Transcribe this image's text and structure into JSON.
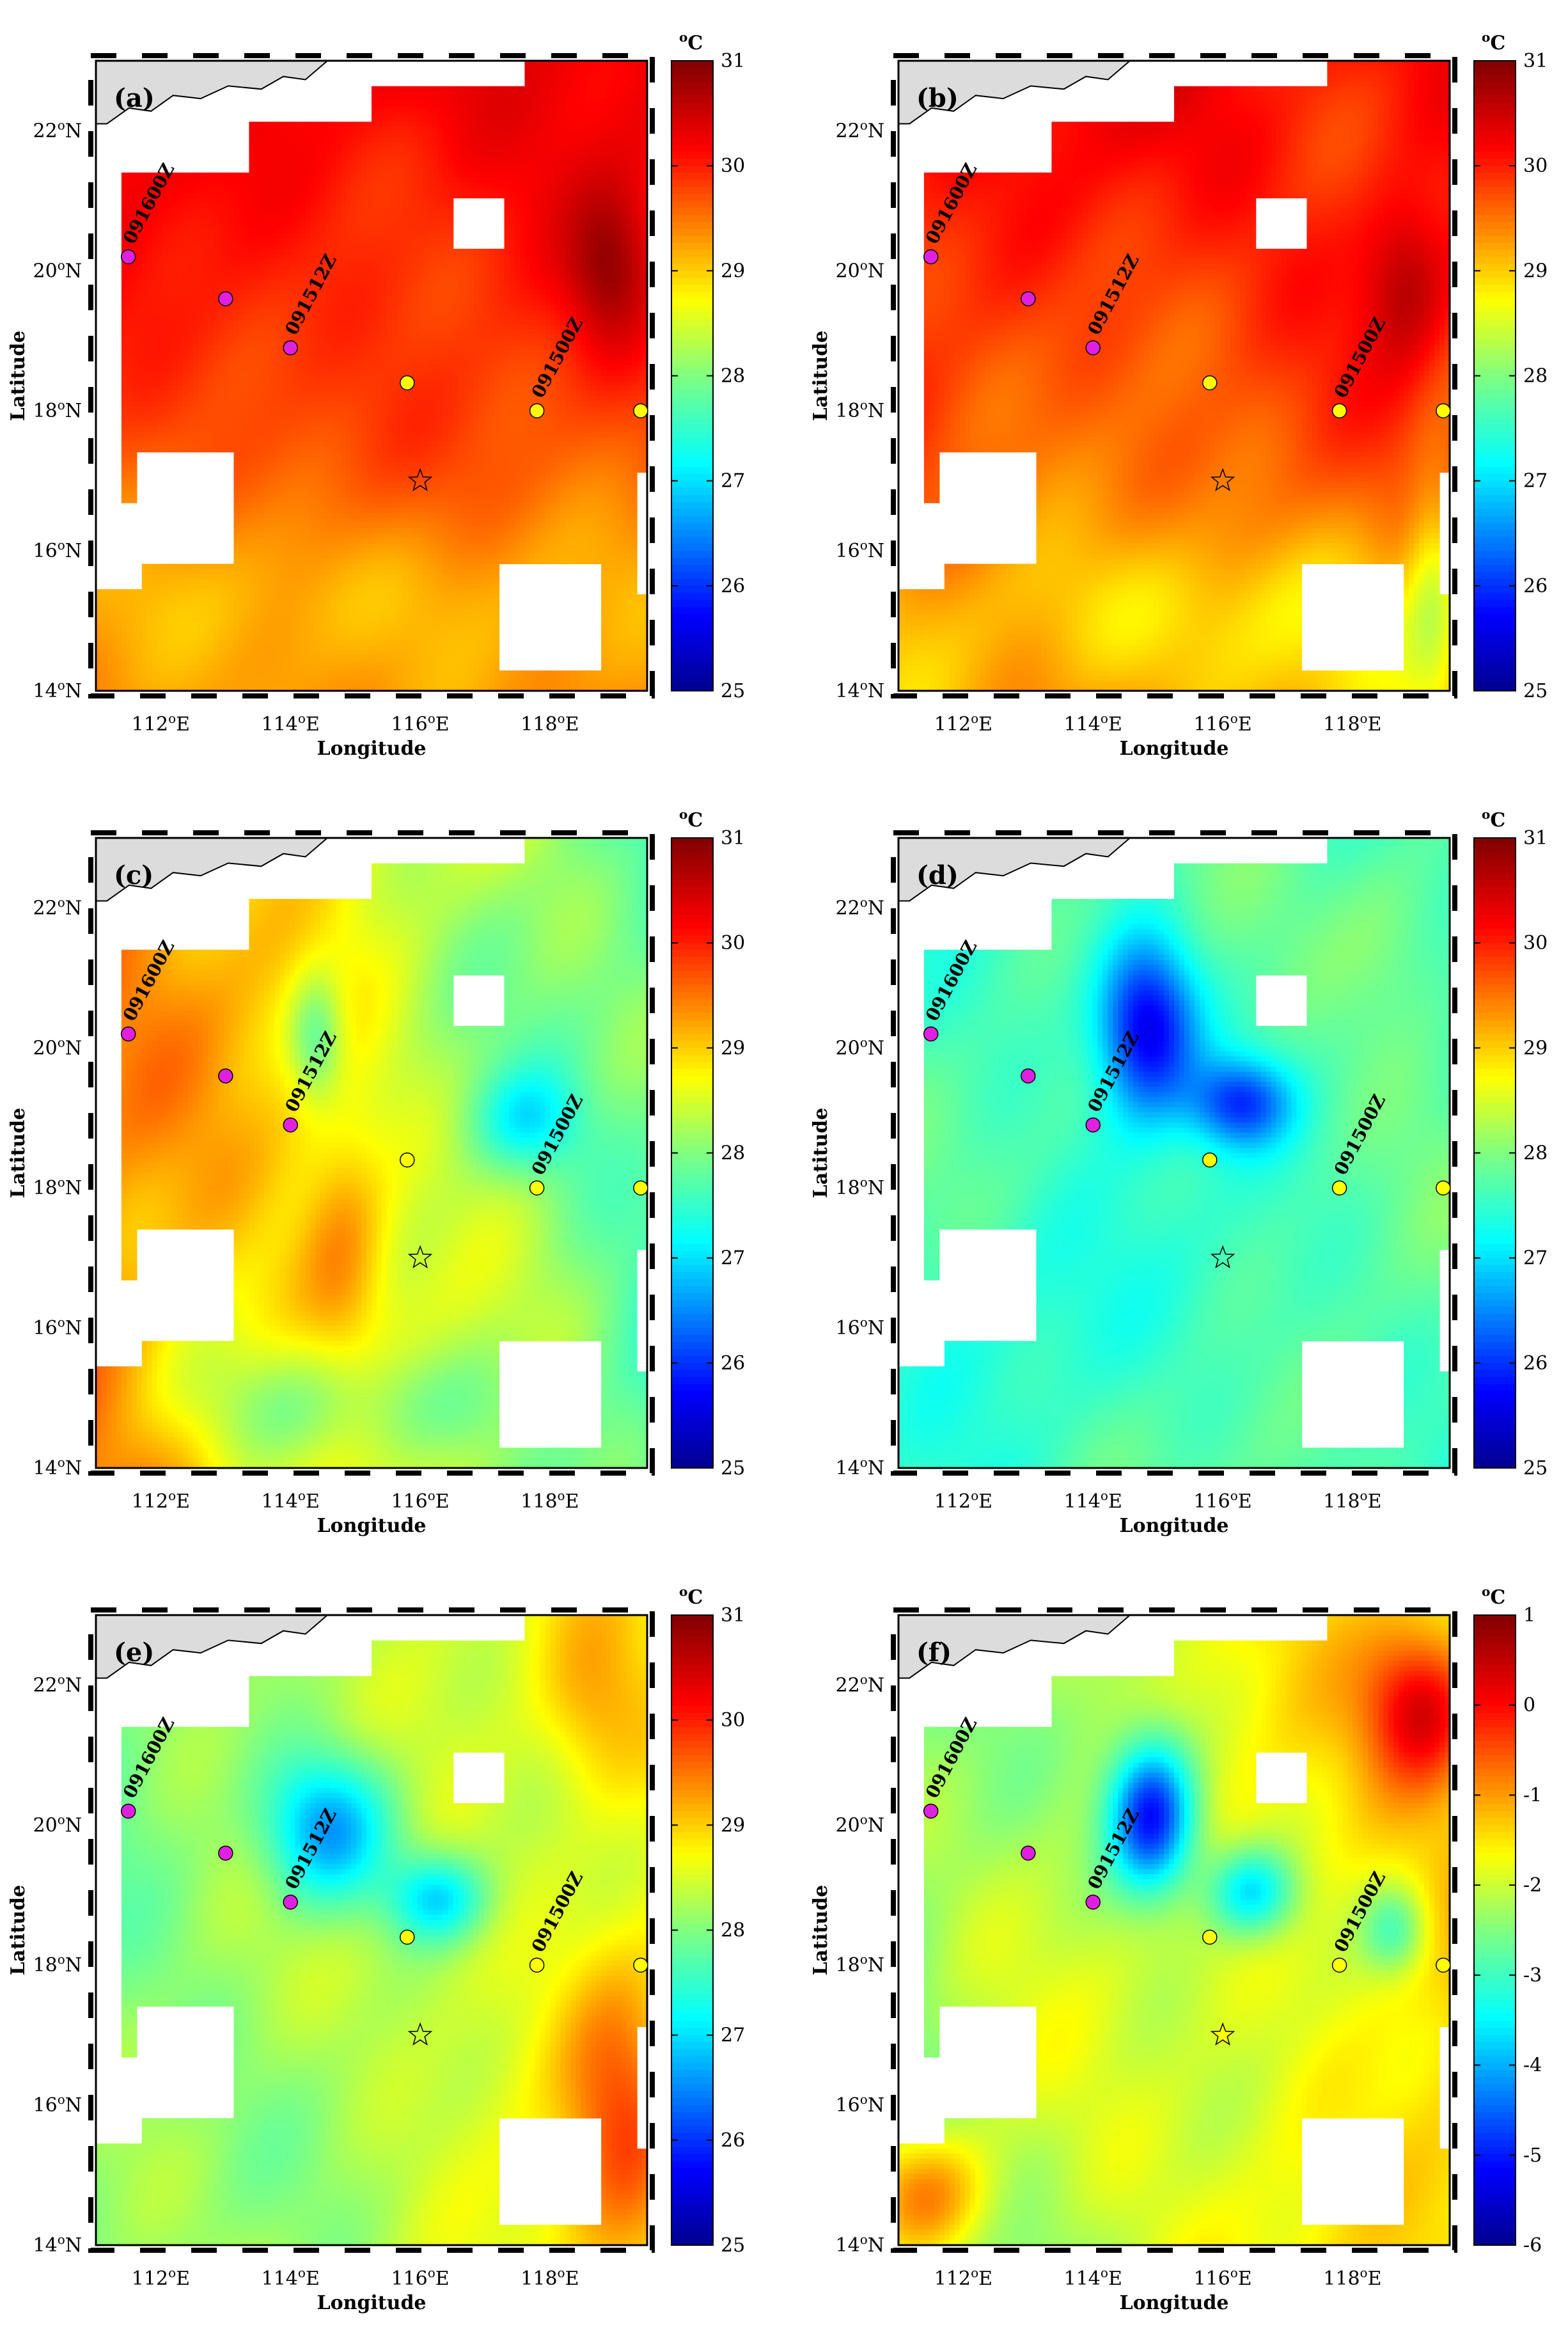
{
  "figure": {
    "colorbar_unit": "oC",
    "colors": {
      "land": "#dcdcdc",
      "coast": "#000000",
      "track_magenta": "#e020e0",
      "track_yellow": "#ffff00"
    }
  },
  "panels": [
    {
      "label": "(a)",
      "cmin": 25,
      "cmax": 31,
      "ticks": [
        31,
        30,
        29,
        28,
        27,
        26,
        25
      ],
      "field": "warm",
      "mask": "coarse",
      "star_fill": "none"
    },
    {
      "label": "(b)",
      "cmin": 25,
      "cmax": 31,
      "ticks": [
        31,
        30,
        29,
        28,
        27,
        26,
        25
      ],
      "field": "warm2",
      "mask": "coarse",
      "star_fill": "none"
    },
    {
      "label": "(c)",
      "cmin": 25,
      "cmax": 31,
      "ticks": [
        31,
        30,
        29,
        28,
        27,
        26,
        25
      ],
      "field": "mixed",
      "mask": "fine",
      "star_fill": "none"
    },
    {
      "label": "(d)",
      "cmin": 25,
      "cmax": 31,
      "ticks": [
        31,
        30,
        29,
        28,
        27,
        26,
        25
      ],
      "field": "cool",
      "mask": "fine",
      "star_fill": "none"
    },
    {
      "label": "(e)",
      "cmin": 25,
      "cmax": 31,
      "ticks": [
        31,
        30,
        29,
        28,
        27,
        26,
        25
      ],
      "field": "cool2",
      "mask": "fine",
      "star_fill": "none"
    },
    {
      "label": "(f)",
      "cmin": -6,
      "cmax": 1,
      "ticks": [
        1,
        0,
        -1,
        -2,
        -3,
        -4,
        -5,
        -6
      ],
      "field": "diff",
      "mask": "fine",
      "star_fill": "#ffff00"
    }
  ],
  "map": {
    "lon_range": [
      111,
      119.5
    ],
    "lat_range": [
      14,
      23
    ],
    "lon_ticks": [
      {
        "value": 112,
        "label": "112"
      },
      {
        "value": 114,
        "label": "114"
      },
      {
        "value": 116,
        "label": "116"
      },
      {
        "value": 118,
        "label": "118"
      }
    ],
    "lat_ticks": [
      {
        "value": 14,
        "label": "14"
      },
      {
        "value": 16,
        "label": "16"
      },
      {
        "value": 18,
        "label": "18"
      },
      {
        "value": 20,
        "label": "20"
      },
      {
        "value": 22,
        "label": "22"
      }
    ],
    "degree_symbol": "o",
    "lon_suffix": "E",
    "lat_suffix": "N",
    "xlabel": "Longitude",
    "ylabel": "Latitude"
  },
  "typhoon_track": {
    "points": [
      {
        "lon": 111.5,
        "lat": 20.2,
        "color": "magenta",
        "label": "091600Z"
      },
      {
        "lon": 113.0,
        "lat": 19.6,
        "color": "magenta",
        "label": ""
      },
      {
        "lon": 114.0,
        "lat": 18.9,
        "color": "magenta",
        "label": "091512Z"
      },
      {
        "lon": 115.8,
        "lat": 18.4,
        "color": "yellow",
        "label": ""
      },
      {
        "lon": 117.8,
        "lat": 18.0,
        "color": "yellow",
        "label": "091500Z"
      },
      {
        "lon": 119.4,
        "lat": 18.0,
        "color": "yellow",
        "label": ""
      }
    ],
    "star": {
      "lon": 116.0,
      "lat": 17.0
    }
  }
}
